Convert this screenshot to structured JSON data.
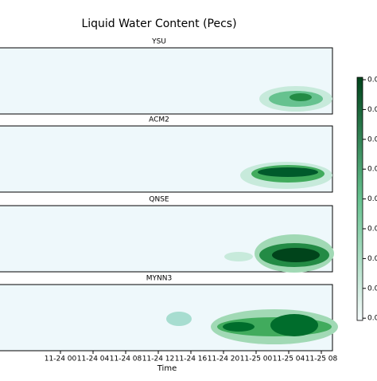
{
  "chart_data": {
    "type": "contour",
    "title": "Liquid Water Content (Pecs)",
    "x_label": "Time",
    "panels": [
      "YSU",
      "ACM2",
      "QNSE",
      "MYNN3"
    ],
    "categories": [
      "11-24 00",
      "11-24 04",
      "11-24 08",
      "11-24 12",
      "11-24 16",
      "11-24 20",
      "11-25 00",
      "11-25 04",
      "11-25 08"
    ],
    "colorbar_ticks": [
      "0.0",
      "0.0",
      "0.0",
      "0.0",
      "0.0",
      "0.0",
      "0.0",
      "0.0",
      "0.0"
    ],
    "colors": [
      "#f7fcfd",
      "#00441b"
    ]
  }
}
